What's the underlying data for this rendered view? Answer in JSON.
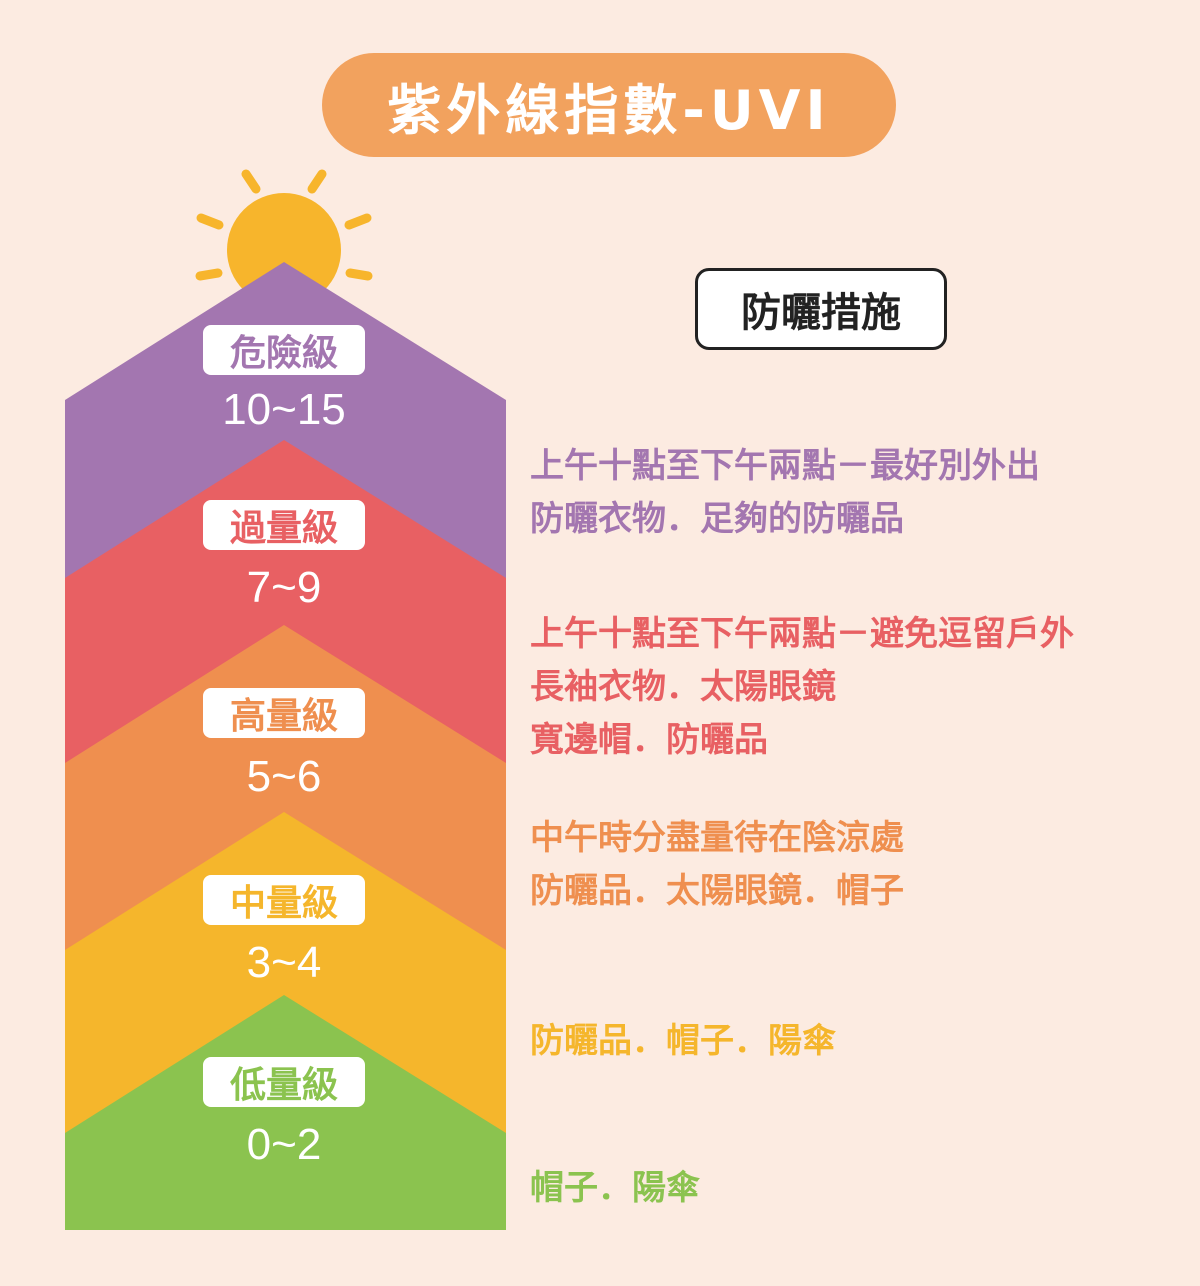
{
  "title": "紫外線指數-UVI",
  "measures_header": "防曬措施",
  "colors": {
    "background": "#fcebe1",
    "title_pill": "#f2a25e",
    "sun": "#f7b52c"
  },
  "levels": [
    {
      "label": "危險級",
      "range": "10~15",
      "color": "#a376b0",
      "measures": [
        "上午十點至下午兩點－最好別外出",
        "防曬衣物．足夠的防曬品"
      ]
    },
    {
      "label": "過量級",
      "range": "7~9",
      "color": "#e86063",
      "measures": [
        "上午十點至下午兩點－避免逗留戶外",
        "長袖衣物．太陽眼鏡",
        "寬邊帽．防曬品"
      ]
    },
    {
      "label": "高量級",
      "range": "5~6",
      "color": "#ef8f4f",
      "measures": [
        "中午時分盡量待在陰涼處",
        "防曬品．太陽眼鏡．帽子"
      ]
    },
    {
      "label": "中量級",
      "range": "3~4",
      "color": "#f5b62c",
      "measures": [
        "防曬品．帽子．陽傘"
      ]
    },
    {
      "label": "低量級",
      "range": "0~2",
      "color": "#8bc34f",
      "measures": [
        "帽子．陽傘"
      ]
    }
  ]
}
